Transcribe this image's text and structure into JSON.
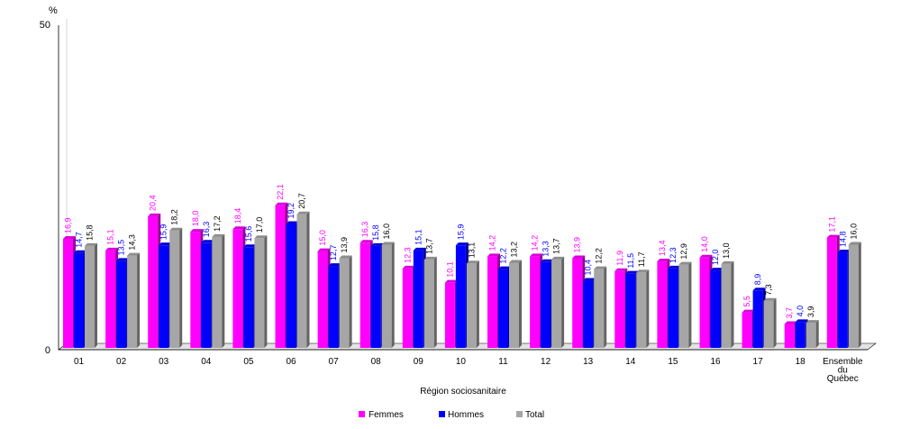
{
  "chart_data": {
    "type": "bar",
    "title": "",
    "ylabel": "%",
    "xlabel": "Région sociosanitaire",
    "ylim": [
      0,
      50
    ],
    "yticks": [
      "0",
      "50"
    ],
    "categories": [
      "01",
      "02",
      "03",
      "04",
      "05",
      "06",
      "07",
      "08",
      "09",
      "10",
      "11",
      "12",
      "13",
      "14",
      "15",
      "16",
      "17",
      "18",
      "Ensemble du Québec"
    ],
    "series": [
      {
        "name": "Femmes",
        "color": "#ff00ff",
        "label_color": "#ff00ff",
        "values": [
          16.9,
          15.1,
          20.4,
          18.0,
          18.4,
          22.1,
          15.0,
          16.3,
          12.3,
          10.1,
          14.2,
          14.2,
          13.9,
          11.9,
          13.4,
          14.0,
          5.5,
          3.7,
          17.1
        ],
        "labels": [
          "16,9",
          "15,1",
          "20,4",
          "18,0",
          "18,4",
          "22,1",
          "15,0",
          "16,3",
          "12,3",
          "10,1",
          "14,2",
          "14,2",
          "13,9",
          "11,9",
          "13,4",
          "14,0",
          "5,5",
          "3,7",
          "17,1"
        ]
      },
      {
        "name": "Hommes",
        "color": "#0000ff",
        "label_color": "#0000ff",
        "values": [
          14.7,
          13.5,
          15.9,
          16.3,
          15.6,
          19.2,
          12.7,
          15.8,
          15.1,
          15.9,
          12.2,
          13.3,
          10.4,
          11.5,
          12.3,
          12.0,
          8.9,
          4.0,
          14.8
        ],
        "labels": [
          "14,7",
          "13,5",
          "15,9",
          "16,3",
          "15,6",
          "19,2",
          "12,7",
          "15,8",
          "15,1",
          "15,9",
          "12,2",
          "13,3",
          "10,4",
          "11,5",
          "12,3",
          "12,0",
          "8,9",
          "4,0",
          "14,8"
        ]
      },
      {
        "name": "Total",
        "color": "#a6a6a6",
        "label_color": "#000000",
        "values": [
          15.8,
          14.3,
          18.2,
          17.2,
          17.0,
          20.7,
          13.9,
          16.0,
          13.7,
          13.1,
          13.2,
          13.7,
          12.2,
          11.7,
          12.9,
          13.0,
          7.3,
          3.9,
          16.0
        ],
        "labels": [
          "15,8",
          "14,3",
          "18,2",
          "17,2",
          "17,0",
          "20,7",
          "13,9",
          "16,0",
          "13,7",
          "13,1",
          "13,2",
          "13,7",
          "12,2",
          "11,7",
          "12,9",
          "13,0",
          "7,3",
          "3,9",
          "16,0"
        ]
      }
    ],
    "legend_position": "bottom-center",
    "grid": false
  }
}
